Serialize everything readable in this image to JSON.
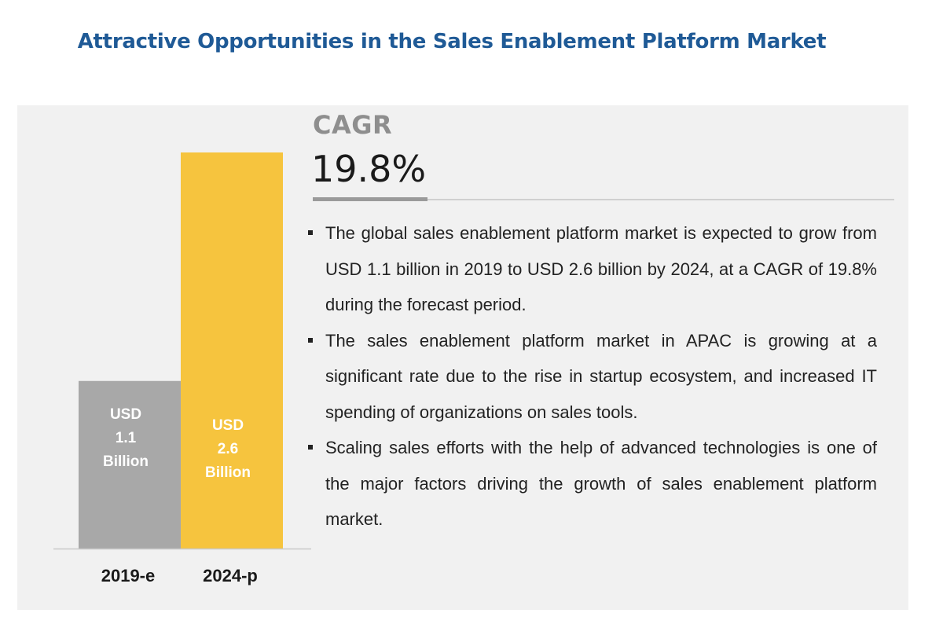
{
  "title": "Attractive Opportunities in the Sales Enablement Platform Market",
  "cagr": {
    "label": "CAGR",
    "value": "19.8%"
  },
  "bullets": [
    "The global sales enablement platform market is expected to grow from USD 1.1 billion in 2019 to USD 2.6 billion by 2024, at a CAGR of 19.8% during the forecast period.",
    "The sales enablement platform market in APAC is growing at a significant rate due to the rise in startup ecosystem, and increased IT spending of organizations on sales tools.",
    "Scaling sales efforts with the help of advanced technologies is one of the major factors driving the growth of sales enablement platform market."
  ],
  "colors": {
    "bar_2019": "#a8a8a8",
    "bar_2024": "#f6c43e",
    "title": "#1f5a96",
    "panel": "#f1f1f1"
  },
  "chart_data": {
    "type": "bar",
    "categories": [
      "2019-e",
      "2024-p"
    ],
    "values": [
      1.1,
      2.6
    ],
    "data_labels": [
      [
        "USD",
        "1.1",
        "Billion"
      ],
      [
        "USD",
        "2.6",
        "Billion"
      ]
    ],
    "units": "USD Billion",
    "ylim": [
      0,
      2.6
    ],
    "grid": false,
    "legend": "none"
  }
}
